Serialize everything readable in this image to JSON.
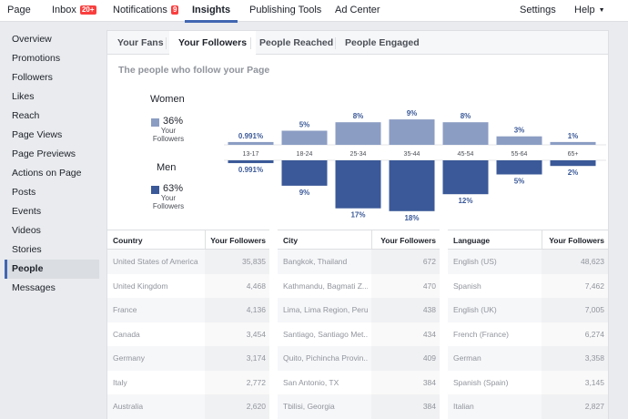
{
  "topnav": {
    "items": [
      {
        "label": "Page"
      },
      {
        "label": "Inbox",
        "badge": "20+"
      },
      {
        "label": "Notifications",
        "badge": "9"
      },
      {
        "label": "Insights",
        "active": true
      },
      {
        "label": "Publishing Tools"
      },
      {
        "label": "Ad Center"
      },
      {
        "label": "Settings"
      },
      {
        "label": "Help"
      }
    ]
  },
  "sidebar": {
    "items": [
      {
        "label": "Overview"
      },
      {
        "label": "Promotions"
      },
      {
        "label": "Followers"
      },
      {
        "label": "Likes"
      },
      {
        "label": "Reach"
      },
      {
        "label": "Page Views"
      },
      {
        "label": "Page Previews"
      },
      {
        "label": "Actions on Page"
      },
      {
        "label": "Posts"
      },
      {
        "label": "Events"
      },
      {
        "label": "Videos"
      },
      {
        "label": "Stories"
      },
      {
        "label": "People",
        "active": true
      },
      {
        "label": "Messages"
      }
    ]
  },
  "tabs": {
    "items": [
      {
        "label": "Your Fans"
      },
      {
        "label": "Your Followers",
        "active": true
      },
      {
        "label": "People Reached"
      },
      {
        "label": "People Engaged"
      }
    ]
  },
  "section": {
    "title": "The people who follow your Page"
  },
  "legend": {
    "women": {
      "label": "Women",
      "pct": "36%",
      "sub": "Your Followers",
      "color": "#8b9dc3"
    },
    "men": {
      "label": "Men",
      "pct": "63%",
      "sub": "Your Followers",
      "color": "#3b5998"
    }
  },
  "chart_data": {
    "type": "bar",
    "title": "The people who follow your Page",
    "categories": [
      "13-17",
      "18-24",
      "25-34",
      "35-44",
      "45-54",
      "55-64",
      "65+"
    ],
    "series": [
      {
        "name": "Women",
        "values": [
          0.991,
          5,
          8,
          9,
          8,
          3,
          1
        ],
        "labels": [
          "0.991%",
          "5%",
          "8%",
          "9%",
          "8%",
          "3%",
          "1%"
        ],
        "color": "#8b9dc3"
      },
      {
        "name": "Men",
        "values": [
          0.991,
          9,
          17,
          18,
          12,
          5,
          2
        ],
        "labels": [
          "0.991%",
          "9%",
          "17%",
          "18%",
          "12%",
          "5%",
          "2%"
        ],
        "color": "#3b5998"
      }
    ]
  },
  "tables": [
    {
      "col1": "Country",
      "col2": "Your Followers",
      "rows": [
        {
          "name": "United States of America",
          "value": "35,835"
        },
        {
          "name": "United Kingdom",
          "value": "4,468"
        },
        {
          "name": "France",
          "value": "4,136"
        },
        {
          "name": "Canada",
          "value": "3,454"
        },
        {
          "name": "Germany",
          "value": "3,174"
        },
        {
          "name": "Italy",
          "value": "2,772"
        },
        {
          "name": "Australia",
          "value": "2,620"
        }
      ]
    },
    {
      "col1": "City",
      "col2": "Your Followers",
      "rows": [
        {
          "name": "Bangkok, Thailand",
          "value": "672"
        },
        {
          "name": "Kathmandu, Bagmati Z...",
          "value": "470"
        },
        {
          "name": "Lima, Lima Region, Peru",
          "value": "438"
        },
        {
          "name": "Santiago, Santiago Met...",
          "value": "434"
        },
        {
          "name": "Quito, Pichincha Provin...",
          "value": "409"
        },
        {
          "name": "San Antonio, TX",
          "value": "384"
        },
        {
          "name": "Tbilisi, Georgia",
          "value": "384"
        }
      ]
    },
    {
      "col1": "Language",
      "col2": "Your Followers",
      "rows": [
        {
          "name": "English (US)",
          "value": "48,623"
        },
        {
          "name": "Spanish",
          "value": "7,462"
        },
        {
          "name": "English (UK)",
          "value": "7,005"
        },
        {
          "name": "French (France)",
          "value": "6,274"
        },
        {
          "name": "German",
          "value": "3,358"
        },
        {
          "name": "Spanish (Spain)",
          "value": "3,145"
        },
        {
          "name": "Italian",
          "value": "2,827"
        }
      ]
    }
  ]
}
